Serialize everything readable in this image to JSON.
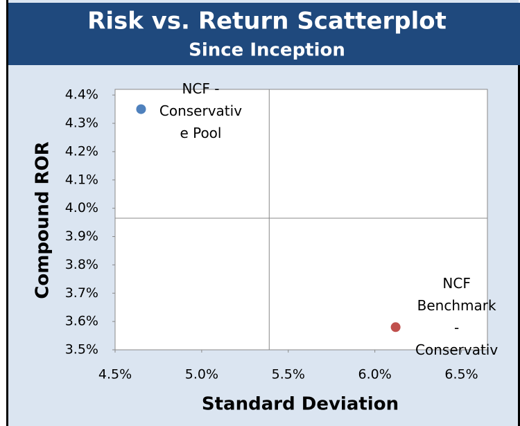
{
  "chart_data": {
    "type": "scatter",
    "title": "Risk vs. Return Scatterplot",
    "subtitle": "Since Inception",
    "x_label": "Standard Deviation",
    "y_label": "Compound ROR",
    "xlim": [
      4.5,
      6.65
    ],
    "ylim": [
      3.5,
      4.42
    ],
    "xticks": [
      {
        "value": 4.5,
        "label": "4.5%"
      },
      {
        "value": 5.0,
        "label": "5.0%"
      },
      {
        "value": 5.5,
        "label": "5.5%"
      },
      {
        "value": 6.0,
        "label": "6.0%"
      },
      {
        "value": 6.5,
        "label": "6.5%"
      }
    ],
    "yticks": [
      {
        "value": 3.5,
        "label": "3.5%"
      },
      {
        "value": 3.6,
        "label": "3.6%"
      },
      {
        "value": 3.7,
        "label": "3.7%"
      },
      {
        "value": 3.8,
        "label": "3.8%"
      },
      {
        "value": 3.9,
        "label": "3.9%"
      },
      {
        "value": 4.0,
        "label": "4.0%"
      },
      {
        "value": 4.1,
        "label": "4.1%"
      },
      {
        "value": 4.2,
        "label": "4.2%"
      },
      {
        "value": 4.3,
        "label": "4.3%"
      },
      {
        "value": 4.4,
        "label": "4.4%"
      }
    ],
    "x_divider": 5.39,
    "y_divider": 3.965,
    "series": [
      {
        "label_lines": [
          "NCF -",
          "Conservativ",
          "e Pool"
        ],
        "color": "#4f81bd",
        "x": [
          4.65
        ],
        "values": [
          4.35
        ]
      },
      {
        "label_lines": [
          "NCF",
          "Benchmark",
          "-",
          "Conservativ"
        ],
        "color": "#c0504d",
        "x": [
          6.12
        ],
        "values": [
          3.58
        ]
      }
    ]
  }
}
